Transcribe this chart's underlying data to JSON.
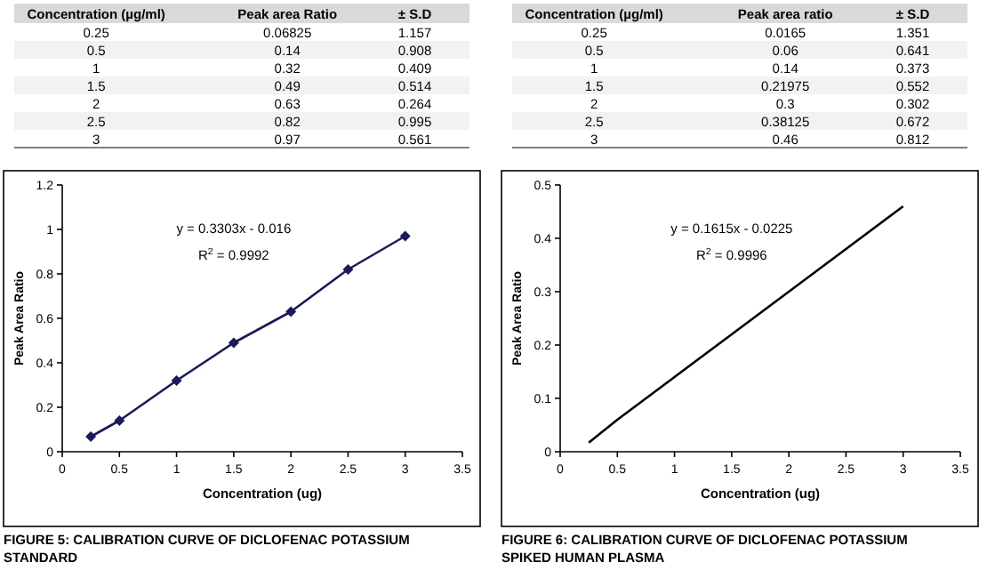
{
  "chart_data": [
    {
      "type": "other",
      "annotations": [
        "Concentration (µg/ml)",
        "Peak area Ratio",
        "± S.D",
        "0.25",
        "0.06825",
        "1.157",
        "0.5",
        "0.14",
        "0.908",
        "1",
        "0.32",
        "0.409",
        "1.5",
        "0.49",
        "0.514",
        "2",
        "0.63",
        "0.264",
        "2.5",
        "0.82",
        "0.995",
        "3",
        "0.97",
        "0.561"
      ]
    },
    {
      "type": "other",
      "annotations": [
        "Concentration (µg/ml)",
        "Peak area ratio",
        "± S.D",
        "0.25",
        "0.0165",
        "1.351",
        "0.5",
        "0.06",
        "0.641",
        "1",
        "0.14",
        "0.373",
        "1.5",
        "0.21975",
        "0.552",
        "2",
        "0.3",
        "0.302",
        "2.5",
        "0.38125",
        "0.672",
        "3",
        "0.46",
        "0.812"
      ]
    },
    {
      "type": "line",
      "title": "FIGURE 5: CALIBRATION CURVE OF DICLOFENAC POTASSIUM STANDARD",
      "xlabel": "Concentration (ug)",
      "ylabel": "Peak Area Ratio",
      "x": [
        0.25,
        0.5,
        1,
        1.5,
        2,
        2.5,
        3
      ],
      "series": [
        {
          "color": "#1a1a5e",
          "values": [
            0.068,
            0.14,
            0.32,
            0.49,
            0.63,
            0.82,
            0.97
          ]
        }
      ],
      "marker": "diamond",
      "xlim": [
        0,
        3.5
      ],
      "xticks": [
        0,
        0.5,
        1,
        1.5,
        2,
        2.5,
        3,
        3.5
      ],
      "ylim": [
        0,
        1.2
      ],
      "yticks": [
        0,
        0.2,
        0.4,
        0.6,
        0.8,
        1,
        1.2
      ],
      "grid": false,
      "annotations": [
        "y = 0.3303x - 0.016",
        "R$^{2}$ = 0.9992"
      ]
    },
    {
      "type": "line",
      "title": "FIGURE 6: CALIBRATION CURVE OF DICLOFENAC POTASSIUM SPIKED HUMAN PLASMA",
      "xlabel": "Concentration (ug)",
      "ylabel": "Peak Area Ratio",
      "x": [
        0.25,
        0.5,
        1,
        1.5,
        2,
        2.5,
        3
      ],
      "series": [
        {
          "color": "#000000",
          "values": [
            0.017,
            0.06,
            0.14,
            0.22,
            0.3,
            0.38,
            0.46
          ]
        }
      ],
      "marker": "none",
      "xlim": [
        0,
        3.5
      ],
      "xticks": [
        0,
        0.5,
        1,
        1.5,
        2,
        2.5,
        3,
        3.5
      ],
      "ylim": [
        0,
        0.5
      ],
      "yticks": [
        0,
        0.1,
        0.2,
        0.3,
        0.4,
        0.5
      ],
      "grid": false,
      "annotations": [
        "y = 0.1615x - 0.0225",
        "R$^{2}$ = 0.9996"
      ]
    }
  ]
}
